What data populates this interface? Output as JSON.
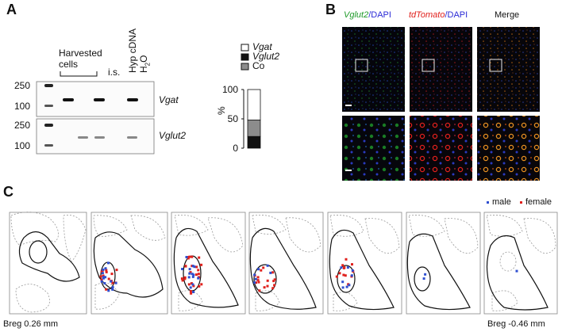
{
  "panels": {
    "A": {
      "letter": "A",
      "gel": {
        "column_labels": {
          "harvested": "Harvested cells",
          "is": "i.s.",
          "hyp_cdna": "Hyp cDNA",
          "h2o_main": "H",
          "h2o_sub": "2",
          "h2o_end": "O"
        },
        "ladder_labels_top": [
          "250",
          "100"
        ],
        "ladder_labels_bottom": [
          "250",
          "100"
        ],
        "gene_labels": [
          "Vgat",
          "Vglut2"
        ]
      },
      "bar": {
        "legend": [
          {
            "label": "Vgat",
            "italic": true,
            "color": "#ffffff"
          },
          {
            "label": "Vglut2",
            "italic": true,
            "color": "#111111"
          },
          {
            "label": "Co",
            "italic": false,
            "color": "#8c8c8c"
          }
        ],
        "ylabel": "%",
        "ticks": [
          "100",
          "50",
          "0"
        ]
      }
    },
    "B": {
      "letter": "B",
      "headers": [
        {
          "part1": "Vglut2",
          "part1_color": "#1f9a2a",
          "part2": "/DAPI",
          "part2_color": "#2b2bd6"
        },
        {
          "part1": "tdTomato",
          "part1_color": "#e0201c",
          "part2": "/DAPI",
          "part2_color": "#2b2bd6"
        },
        {
          "part1": "Merge",
          "part1_color": "#111111",
          "part2": "",
          "part2_color": "#111111"
        }
      ]
    },
    "C": {
      "letter": "C",
      "legend": [
        {
          "label": "male",
          "color": "#2f4fd0"
        },
        {
          "label": "female",
          "color": "#e0201c"
        }
      ],
      "left_label": "Breg 0.26 mm",
      "right_label": "Breg -0.46 mm"
    }
  },
  "chart_data": {
    "type": "bar",
    "categories": [
      ""
    ],
    "series": [
      {
        "name": "Vglut2",
        "values": [
          20
        ]
      },
      {
        "name": "Co",
        "values": [
          28
        ]
      },
      {
        "name": "Vgat",
        "values": [
          52
        ]
      }
    ],
    "stacked": true,
    "ylabel": "%",
    "ylim": [
      0,
      100
    ],
    "yticks": [
      0,
      50,
      100
    ]
  }
}
